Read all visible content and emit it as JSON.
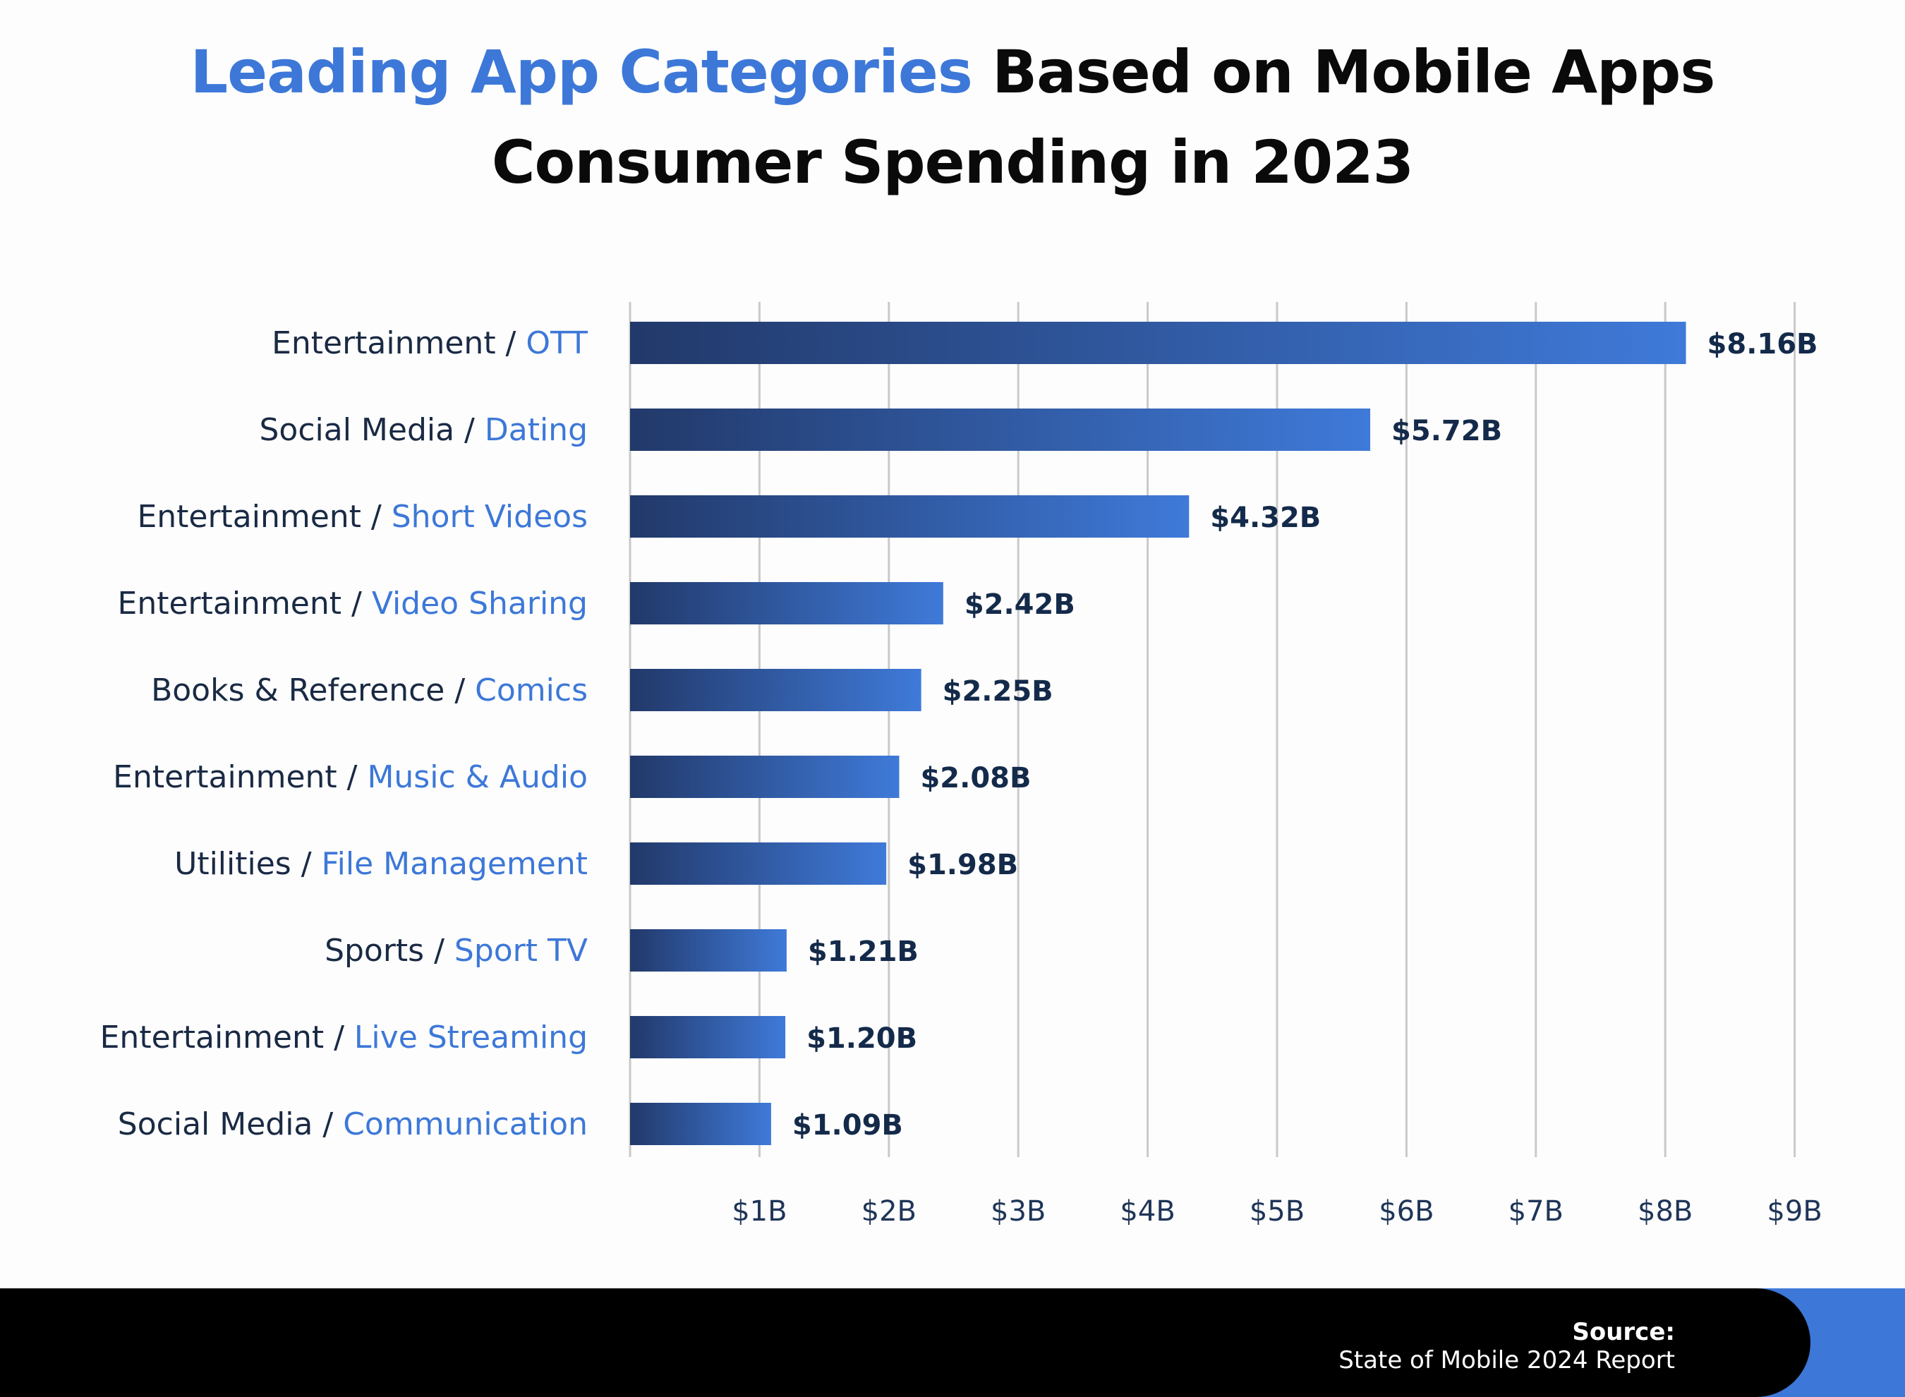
{
  "title": {
    "highlight": "Leading App Categories",
    "rest_line1": " Based on Mobile Apps",
    "line2": "Consumer Spending in 2023"
  },
  "colors": {
    "accent": "#3d78d8",
    "bar_start": "#22396a",
    "bar_end": "#3f7ad9",
    "label_dark": "#1a2a44",
    "footer_bg": "#000000"
  },
  "chart_data": {
    "type": "bar",
    "orientation": "horizontal",
    "categories": [
      {
        "main": "Entertainment",
        "sub": "OTT"
      },
      {
        "main": "Social Media",
        "sub": "Dating"
      },
      {
        "main": "Entertainment",
        "sub": "Short Videos"
      },
      {
        "main": "Entertainment",
        "sub": "Video Sharing"
      },
      {
        "main": "Books & Reference",
        "sub": "Comics"
      },
      {
        "main": "Entertainment",
        "sub": "Music & Audio"
      },
      {
        "main": "Utilities",
        "sub": "File Management"
      },
      {
        "main": "Sports",
        "sub": "Sport TV"
      },
      {
        "main": "Entertainment",
        "sub": "Live Streaming"
      },
      {
        "main": "Social Media",
        "sub": "Communication"
      }
    ],
    "values": [
      8.16,
      5.72,
      4.32,
      2.42,
      2.25,
      2.08,
      1.98,
      1.21,
      1.2,
      1.09
    ],
    "value_labels": [
      "$8.16B",
      "$5.72B",
      "$4.32B",
      "$2.42B",
      "$2.25B",
      "$2.08B",
      "$1.98B",
      "$1.21B",
      "$1.20B",
      "$1.09B"
    ],
    "xticks": [
      1,
      2,
      3,
      4,
      5,
      6,
      7,
      8,
      9
    ],
    "xtick_labels": [
      "$1B",
      "$2B",
      "$3B",
      "$4B",
      "$5B",
      "$6B",
      "$7B",
      "$8B",
      "$9B"
    ],
    "xlim": [
      0,
      9
    ],
    "grid": "vertical"
  },
  "footer": {
    "source_title": "Source:",
    "source_text": "State of Mobile 2024 Report"
  }
}
